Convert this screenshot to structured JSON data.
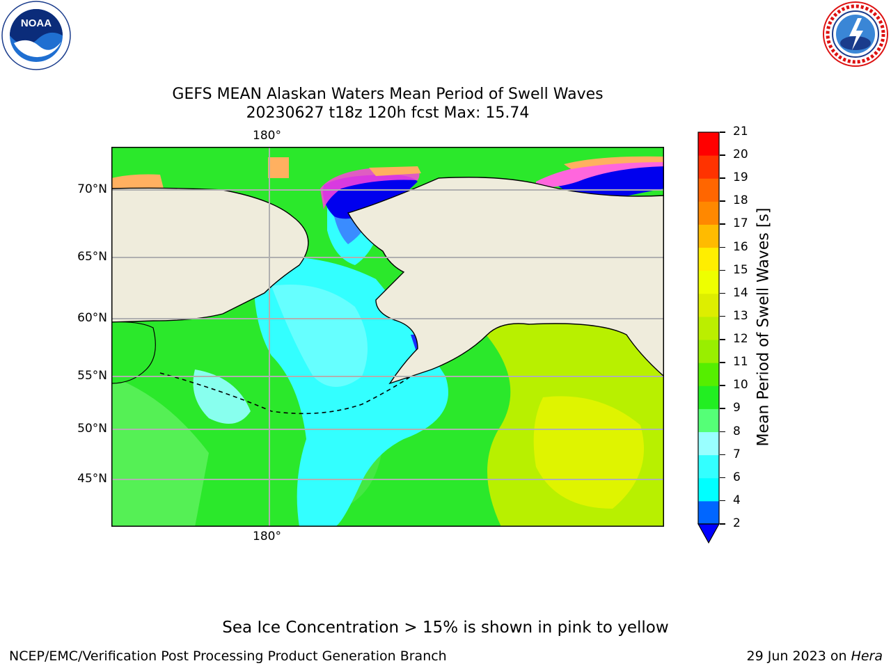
{
  "title": {
    "line1": "GEFS MEAN Alaskan Waters Mean Period of Swell Waves",
    "line2": "20230627 t18z 120h fcst   Max: 15.74"
  },
  "logos": {
    "left": {
      "icon": "noaa-logo",
      "text": "NOAA"
    },
    "right": {
      "icon": "nws-logo",
      "text": "NATIONAL WEATHER SERVICE"
    }
  },
  "map": {
    "lon_labels": [
      "180°",
      "180°"
    ],
    "lat_labels": [
      "70°N",
      "65°N",
      "60°N",
      "55°N",
      "50°N",
      "45°N"
    ],
    "colors": {
      "land": "#efecdc",
      "coast": "#000000",
      "grid": "#b0b0b0"
    }
  },
  "colorbar": {
    "label": "Mean Period of Swell Waves [s]",
    "ticks": [
      "2",
      "4",
      "6",
      "7",
      "8",
      "9",
      "10",
      "11",
      "12",
      "13",
      "14",
      "15",
      "16",
      "17",
      "18",
      "19",
      "20",
      "21"
    ],
    "colors": [
      "#0066ff",
      "#00ffff",
      "#33ffff",
      "#99ffff",
      "#55ff77",
      "#22ee22",
      "#55ee00",
      "#99ee00",
      "#bbee00",
      "#ddee00",
      "#eeff00",
      "#ffee00",
      "#ffbb00",
      "#ff8800",
      "#ff6600",
      "#ff3300",
      "#ff0000"
    ],
    "extend_color": "#0000ff"
  },
  "footer": {
    "note": "Sea Ice Concentration > 15% is shown in pink to yellow",
    "left": "NCEP/EMC/Verification Post Processing Product Generation Branch",
    "right_date": "29 Jun 2023 on ",
    "right_host": "Hera"
  }
}
